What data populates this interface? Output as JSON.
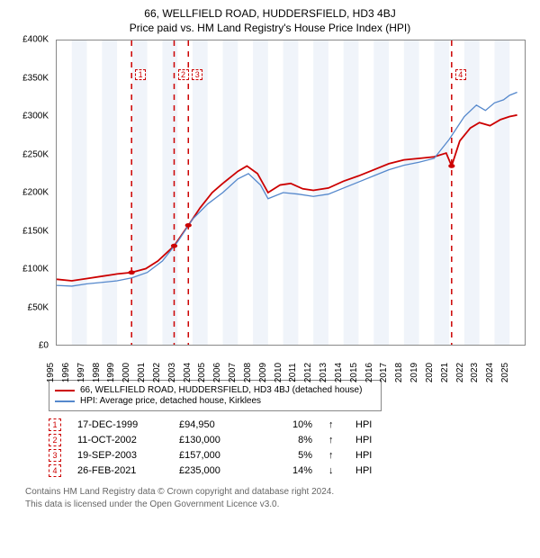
{
  "titles": {
    "line1": "66, WELLFIELD ROAD, HUDDERSFIELD, HD3 4BJ",
    "line2": "Price paid vs. HM Land Registry's House Price Index (HPI)"
  },
  "chart": {
    "type": "line",
    "background_color": "#ffffff",
    "plot_border_color": "#888888",
    "band_color": "#f0f4fa",
    "x": {
      "min": 1995,
      "max": 2026,
      "ticks": [
        1995,
        1996,
        1997,
        1998,
        1999,
        2000,
        2001,
        2002,
        2003,
        2004,
        2005,
        2006,
        2007,
        2008,
        2009,
        2010,
        2011,
        2012,
        2013,
        2014,
        2015,
        2016,
        2017,
        2018,
        2019,
        2020,
        2021,
        2022,
        2023,
        2024,
        2025
      ],
      "fontsize": 10
    },
    "y": {
      "min": 0,
      "max": 400000,
      "ticks": [
        0,
        50000,
        100000,
        150000,
        200000,
        250000,
        300000,
        350000,
        400000
      ],
      "labels": [
        "£0",
        "£50K",
        "£100K",
        "£150K",
        "£200K",
        "£250K",
        "£300K",
        "£350K",
        "£400K"
      ],
      "fontsize": 10
    },
    "series": [
      {
        "name": "property",
        "color": "#cc0000",
        "width": 1.8,
        "label": "66, WELLFIELD ROAD, HUDDERSFIELD, HD3 4BJ (detached house)",
        "points": [
          [
            1995,
            86000
          ],
          [
            1996,
            84000
          ],
          [
            1997,
            87000
          ],
          [
            1998,
            90000
          ],
          [
            1999,
            93000
          ],
          [
            1999.96,
            94950
          ],
          [
            2000.9,
            100000
          ],
          [
            2001.7,
            110000
          ],
          [
            2002.78,
            130000
          ],
          [
            2003.72,
            157000
          ],
          [
            2004.5,
            180000
          ],
          [
            2005.3,
            200000
          ],
          [
            2006,
            212000
          ],
          [
            2007,
            228000
          ],
          [
            2007.6,
            235000
          ],
          [
            2008.3,
            225000
          ],
          [
            2009,
            200000
          ],
          [
            2009.8,
            210000
          ],
          [
            2010.5,
            212000
          ],
          [
            2011.3,
            205000
          ],
          [
            2012,
            203000
          ],
          [
            2013,
            206000
          ],
          [
            2014,
            215000
          ],
          [
            2015,
            222000
          ],
          [
            2016,
            230000
          ],
          [
            2017,
            238000
          ],
          [
            2018,
            243000
          ],
          [
            2019,
            245000
          ],
          [
            2020,
            247000
          ],
          [
            2020.8,
            252000
          ],
          [
            2021.16,
            235000
          ],
          [
            2021.7,
            268000
          ],
          [
            2022.4,
            285000
          ],
          [
            2023,
            292000
          ],
          [
            2023.7,
            288000
          ],
          [
            2024.4,
            296000
          ],
          [
            2025,
            300000
          ],
          [
            2025.5,
            302000
          ]
        ]
      },
      {
        "name": "hpi",
        "color": "#5588cc",
        "width": 1.3,
        "label": "HPI: Average price, detached house, Kirklees",
        "points": [
          [
            1995,
            78000
          ],
          [
            1996,
            77000
          ],
          [
            1997,
            80000
          ],
          [
            1998,
            82000
          ],
          [
            1999,
            84000
          ],
          [
            2000,
            88000
          ],
          [
            2001,
            95000
          ],
          [
            2002,
            110000
          ],
          [
            2003,
            135000
          ],
          [
            2004,
            165000
          ],
          [
            2005,
            185000
          ],
          [
            2006,
            200000
          ],
          [
            2007,
            218000
          ],
          [
            2007.7,
            225000
          ],
          [
            2008.5,
            210000
          ],
          [
            2009,
            192000
          ],
          [
            2010,
            200000
          ],
          [
            2011,
            198000
          ],
          [
            2012,
            195000
          ],
          [
            2013,
            198000
          ],
          [
            2014,
            206000
          ],
          [
            2015,
            214000
          ],
          [
            2016,
            222000
          ],
          [
            2017,
            230000
          ],
          [
            2018,
            236000
          ],
          [
            2019,
            240000
          ],
          [
            2020,
            245000
          ],
          [
            2021,
            270000
          ],
          [
            2022,
            300000
          ],
          [
            2022.8,
            315000
          ],
          [
            2023.4,
            308000
          ],
          [
            2024,
            318000
          ],
          [
            2024.6,
            322000
          ],
          [
            2025,
            328000
          ],
          [
            2025.5,
            332000
          ]
        ]
      }
    ],
    "markers": [
      {
        "n": "1",
        "x": 1999.96,
        "y": 94950
      },
      {
        "n": "2",
        "x": 2002.78,
        "y": 130000
      },
      {
        "n": "3",
        "x": 2003.72,
        "y": 157000
      },
      {
        "n": "4",
        "x": 2021.16,
        "y": 235000
      }
    ],
    "marker_dot_color": "#cc0000",
    "marker_box_color": "#cc0000"
  },
  "legend": {
    "items": [
      {
        "color": "#cc0000",
        "label": "66, WELLFIELD ROAD, HUDDERSFIELD, HD3 4BJ (detached house)"
      },
      {
        "color": "#5588cc",
        "label": "HPI: Average price, detached house, Kirklees"
      }
    ]
  },
  "transactions": [
    {
      "n": "1",
      "date": "17-DEC-1999",
      "price": "£94,950",
      "pct": "10%",
      "dir": "↑",
      "suffix": "HPI"
    },
    {
      "n": "2",
      "date": "11-OCT-2002",
      "price": "£130,000",
      "pct": "8%",
      "dir": "↑",
      "suffix": "HPI"
    },
    {
      "n": "3",
      "date": "19-SEP-2003",
      "price": "£157,000",
      "pct": "5%",
      "dir": "↑",
      "suffix": "HPI"
    },
    {
      "n": "4",
      "date": "26-FEB-2021",
      "price": "£235,000",
      "pct": "14%",
      "dir": "↓",
      "suffix": "HPI"
    }
  ],
  "footer": {
    "line1": "Contains HM Land Registry data © Crown copyright and database right 2024.",
    "line2": "This data is licensed under the Open Government Licence v3.0."
  }
}
